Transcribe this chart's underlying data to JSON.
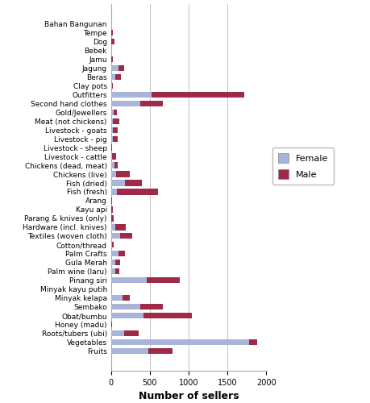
{
  "categories": [
    "Bahan Bangunan",
    "Tempe",
    "Dog",
    "Bebek",
    "Jamu",
    "Jagung",
    "Beras",
    "Clay pots",
    "Outfitters",
    "Second hand clothes",
    "Gold/Jewellers",
    "Meat (not chickens)",
    "Livestock - goats",
    "Livestock - pig",
    "Livestock - sheep",
    "Livestock - cattle",
    "Chickens (dead, meat)",
    "Chickens (live)",
    "Fish (dried)",
    "Fish (fresh)",
    "Arang",
    "Kayu api",
    "Parang & knives (only)",
    "Hardware (incl. knives)",
    "Textiles (woven cloth)",
    "Cotton/thread",
    "Palm Crafts",
    "Gula Merah",
    "Palm wine (laru)",
    "Pinang siri",
    "Minyak kayu putih",
    "Minyak kelapa",
    "Sembako",
    "Obat/bumbu",
    "Honey (madu)",
    "Roots/tubers (ubi)",
    "Vegetables",
    "Fruits"
  ],
  "female": [
    5,
    5,
    5,
    2,
    5,
    100,
    60,
    10,
    520,
    380,
    30,
    25,
    20,
    25,
    5,
    15,
    40,
    65,
    175,
    80,
    5,
    5,
    5,
    55,
    120,
    15,
    95,
    60,
    60,
    460,
    2,
    150,
    380,
    420,
    5,
    165,
    1780,
    480
  ],
  "male": [
    0,
    20,
    40,
    2,
    15,
    65,
    65,
    10,
    1200,
    290,
    50,
    80,
    70,
    65,
    5,
    55,
    50,
    175,
    220,
    520,
    5,
    20,
    25,
    130,
    155,
    20,
    80,
    60,
    50,
    430,
    2,
    90,
    290,
    620,
    5,
    195,
    100,
    310
  ],
  "female_color": "#a8b4d8",
  "male_color": "#9e2a47",
  "xlabel": "Number of sellers",
  "xlim": [
    0,
    2000
  ],
  "xticks": [
    0,
    500,
    1000,
    1500,
    2000
  ],
  "label_fontsize": 6.5,
  "tick_fontsize": 7,
  "xlabel_fontsize": 9,
  "bar_height": 0.65,
  "legend_fontsize": 8
}
